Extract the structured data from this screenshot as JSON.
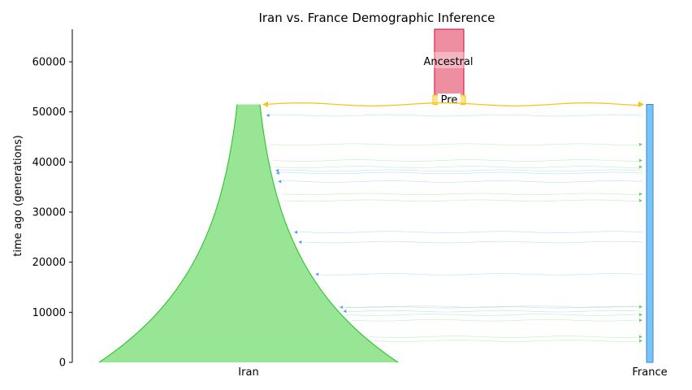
{
  "chart_data": {
    "type": "demography",
    "title": "Iran vs. France Demographic Inference",
    "ylabel": "time ago (generations)",
    "ylim": [
      0,
      66500
    ],
    "yticks": [
      0,
      10000,
      20000,
      30000,
      40000,
      50000,
      60000
    ],
    "ytick_labels": [
      "0",
      "10000",
      "20000",
      "30000",
      "40000",
      "50000",
      "60000"
    ],
    "categories": [
      "Iran",
      "France"
    ],
    "populations": [
      {
        "name": "Ancestral",
        "label": "Ancestral",
        "start": 51500,
        "end": 66500,
        "color": "#ee8fa1",
        "edge": "#d9254a"
      },
      {
        "name": "Pre",
        "label": "Pre",
        "start": 51500,
        "end": 53500,
        "color": "#fde68a",
        "edge": "#f5c518"
      },
      {
        "name": "Iran",
        "label": "Iran",
        "start": 0,
        "end": 51500,
        "shape": "exponential-growth",
        "color": "#98e596",
        "edge": "#2bc42b"
      },
      {
        "name": "France",
        "label": "France",
        "start": 0,
        "end": 51500,
        "shape": "constant",
        "color": "#7cc3f5",
        "edge": "#2f88e0"
      }
    ],
    "split_time": 51500,
    "migrations_to_iran": [
      49300,
      38300,
      37800,
      36100,
      26000,
      24000,
      17600,
      11000,
      10200
    ],
    "migrations_to_france": [
      43500,
      40300,
      39000,
      33600,
      32300,
      11100,
      9500,
      8400,
      5100,
      4300
    ],
    "colors": {
      "to_iran": "#4a9ef0",
      "to_france": "#5cd65c",
      "split_arrow": "#f5c518"
    }
  }
}
